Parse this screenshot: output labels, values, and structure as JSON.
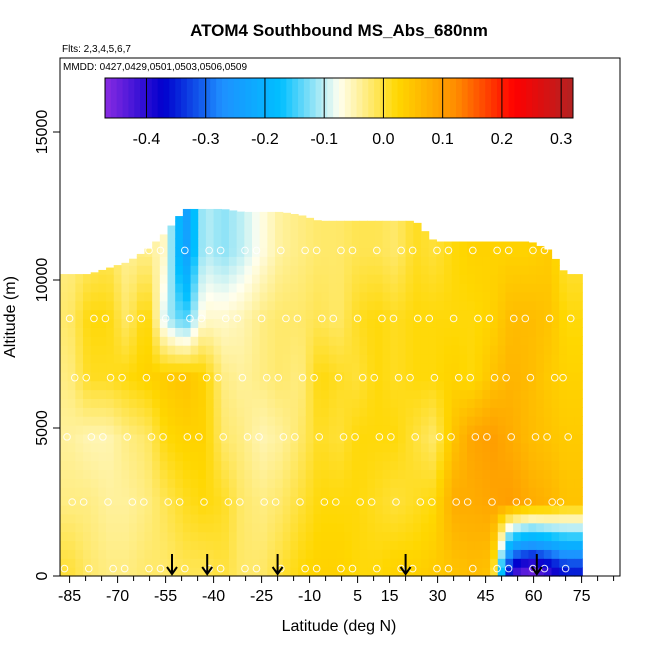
{
  "chart_data": {
    "type": "heatmap",
    "title": "ATOM4 Southbound MS_Abs_680nm",
    "flights_note": "Flts: 2,3,4,5,6,7",
    "dates_note": "MMDD: 0427,0429,0501,0503,0506,0509",
    "xlabel": "Latitude (deg N)",
    "ylabel": "Altitude (m)",
    "xlim": [
      -88,
      87
    ],
    "ylim": [
      0,
      17500
    ],
    "x_ticks": [
      -85,
      -70,
      -55,
      -40,
      -25,
      -10,
      5,
      15,
      30,
      45,
      60,
      75
    ],
    "x_minor_ticks": [
      -80,
      -75,
      -65,
      -60,
      -50,
      -45,
      -35,
      -30,
      -20,
      -15,
      -5,
      0,
      10,
      20,
      25,
      35,
      40,
      50,
      55,
      65,
      70,
      80,
      85
    ],
    "y_ticks": [
      0,
      5000,
      10000,
      15000
    ],
    "colorbar": {
      "range": [
        -0.47,
        0.32
      ],
      "ticks": [
        -0.4,
        -0.3,
        -0.2,
        -0.1,
        0.0,
        0.1,
        0.2,
        0.3
      ],
      "tick_labels": [
        "-0.4",
        "-0.3",
        "-0.2",
        "-0.1",
        "0.0",
        "0.1",
        "0.2",
        "0.3"
      ],
      "colors": [
        "#8a2be2",
        "#0000cd",
        "#1e90ff",
        "#00bfff",
        "#fffff0",
        "#ffd700",
        "#ff8c00",
        "#ff0000",
        "#b22222"
      ]
    },
    "arrows_lat": [
      -53,
      -42,
      -20,
      20,
      61
    ],
    "columns": [
      {
        "lat": -85,
        "top": 10200,
        "vals": [
          0.0,
          -0.03,
          -0.04,
          -0.03,
          -0.02,
          -0.03
        ]
      },
      {
        "lat": -79,
        "top": 10200,
        "vals": [
          -0.02,
          -0.03,
          -0.05,
          0.01,
          0.02,
          -0.02
        ]
      },
      {
        "lat": -73,
        "top": 10400,
        "vals": [
          -0.03,
          -0.04,
          -0.05,
          0.01,
          0.02,
          -0.01
        ]
      },
      {
        "lat": -67,
        "top": 10600,
        "vals": [
          -0.03,
          -0.04,
          -0.03,
          0.02,
          -0.02,
          -0.04
        ]
      },
      {
        "lat": -61,
        "top": 11000,
        "vals": [
          -0.02,
          -0.03,
          -0.02,
          0.03,
          0.03,
          -0.03
        ]
      },
      {
        "lat": -55,
        "top": 11600,
        "vals": [
          -0.02,
          -0.01,
          0.02,
          0.04,
          -0.1,
          -0.06
        ]
      },
      {
        "lat": -49,
        "top": 12400,
        "vals": [
          -0.01,
          0.01,
          0.03,
          0.05,
          -0.15,
          -0.25
        ]
      },
      {
        "lat": -43,
        "top": 12400,
        "vals": [
          -0.01,
          0.02,
          0.03,
          0.03,
          -0.06,
          -0.1
        ]
      },
      {
        "lat": -37,
        "top": 12400,
        "vals": [
          0.0,
          0.01,
          -0.02,
          -0.03,
          -0.06,
          -0.12
        ]
      },
      {
        "lat": -31,
        "top": 12300,
        "vals": [
          -0.02,
          -0.02,
          -0.03,
          -0.04,
          -0.05,
          -0.1
        ]
      },
      {
        "lat": -25,
        "top": 12300,
        "vals": [
          -0.02,
          -0.03,
          -0.05,
          -0.03,
          -0.03,
          -0.07
        ]
      },
      {
        "lat": -19,
        "top": 12300,
        "vals": [
          0.0,
          -0.02,
          -0.04,
          -0.02,
          -0.02,
          -0.04
        ]
      },
      {
        "lat": -13,
        "top": 12200,
        "vals": [
          0.02,
          0.0,
          -0.02,
          -0.03,
          -0.02,
          -0.03
        ]
      },
      {
        "lat": -7,
        "top": 12000,
        "vals": [
          0.03,
          0.02,
          0.01,
          0.02,
          -0.01,
          -0.02
        ]
      },
      {
        "lat": -1,
        "top": 12000,
        "vals": [
          0.03,
          0.02,
          0.0,
          0.01,
          -0.02,
          -0.02
        ]
      },
      {
        "lat": 5,
        "top": 12000,
        "vals": [
          0.02,
          0.02,
          0.02,
          0.0,
          0.01,
          -0.01
        ]
      },
      {
        "lat": 11,
        "top": 12000,
        "vals": [
          0.02,
          0.01,
          0.02,
          0.02,
          0.02,
          -0.01
        ]
      },
      {
        "lat": 17,
        "top": 12000,
        "vals": [
          0.03,
          0.0,
          0.02,
          0.01,
          0.01,
          -0.02
        ]
      },
      {
        "lat": 23,
        "top": 12000,
        "vals": [
          0.03,
          0.01,
          0.0,
          0.02,
          0.02,
          0.01
        ]
      },
      {
        "lat": 29,
        "top": 11300,
        "vals": [
          0.04,
          0.02,
          -0.02,
          0.02,
          0.02,
          0.0
        ]
      },
      {
        "lat": 35,
        "top": 11300,
        "vals": [
          0.05,
          0.08,
          0.05,
          0.03,
          0.02,
          0.02
        ]
      },
      {
        "lat": 41,
        "top": 11300,
        "vals": [
          0.06,
          0.08,
          0.09,
          0.02,
          0.02,
          0.03
        ]
      },
      {
        "lat": 47,
        "top": 11300,
        "vals": [
          0.05,
          0.09,
          0.1,
          0.05,
          0.03,
          0.03
        ]
      },
      {
        "lat": 53,
        "top": 11300,
        "vals": [
          -0.4,
          0.1,
          0.08,
          0.07,
          0.06,
          0.03
        ]
      },
      {
        "lat": 59,
        "top": 11300,
        "vals": [
          -0.45,
          0.08,
          0.06,
          0.06,
          0.06,
          0.03
        ]
      },
      {
        "lat": 65,
        "top": 11000,
        "vals": [
          -0.4,
          0.07,
          0.05,
          0.04,
          0.05,
          0.04
        ]
      },
      {
        "lat": 70,
        "top": 10200,
        "vals": [
          -0.35,
          0.05,
          0.04,
          0.03,
          0.02,
          0.0
        ]
      }
    ],
    "level_altitudes": [
      250,
      2500,
      4700,
      6700,
      8700,
      11000
    ],
    "grid": false,
    "colorbar_position": "top"
  }
}
